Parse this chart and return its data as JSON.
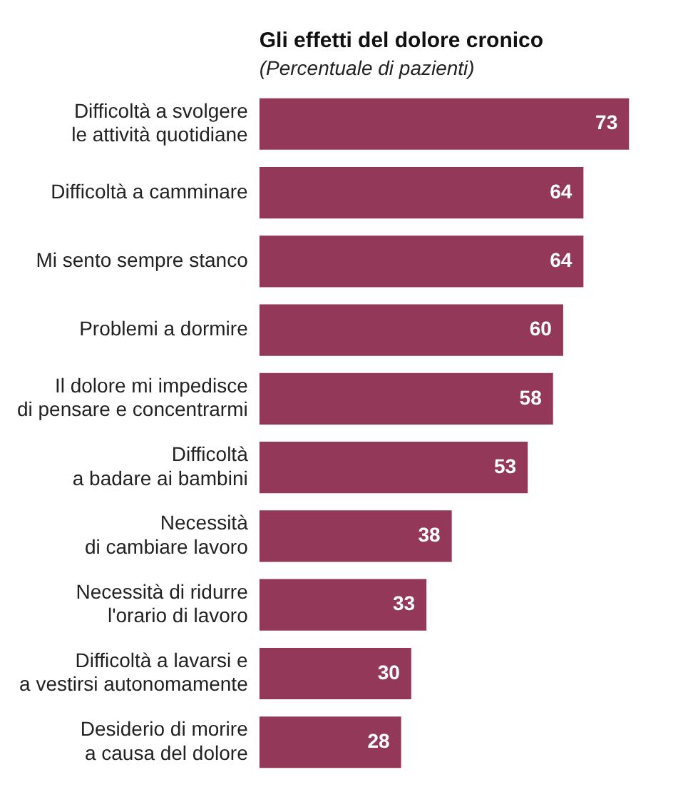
{
  "chart_data": {
    "type": "bar",
    "orientation": "horizontal",
    "title": "Gli effetti del dolore cronico",
    "subtitle": "(Percentuale di pazienti)",
    "categories": [
      "Difficoltà a svolgere\nle attività quotidiane",
      "Difficoltà a camminare",
      "Mi sento sempre stanco",
      "Problemi a dormire",
      "Il dolore mi impedisce\ndi pensare e concentrarmi",
      "Difficoltà\na badare ai bambini",
      "Necessità\ndi cambiare lavoro",
      "Necessità di ridurre\nl'orario di lavoro",
      "Difficoltà a lavarsi e\na vestirsi autonomamente",
      "Desiderio di morire\na causa del dolore"
    ],
    "values": [
      73,
      64,
      64,
      60,
      58,
      53,
      38,
      33,
      30,
      28
    ],
    "color": "#94385a",
    "data_labels": true,
    "grid": false,
    "legend": false
  }
}
